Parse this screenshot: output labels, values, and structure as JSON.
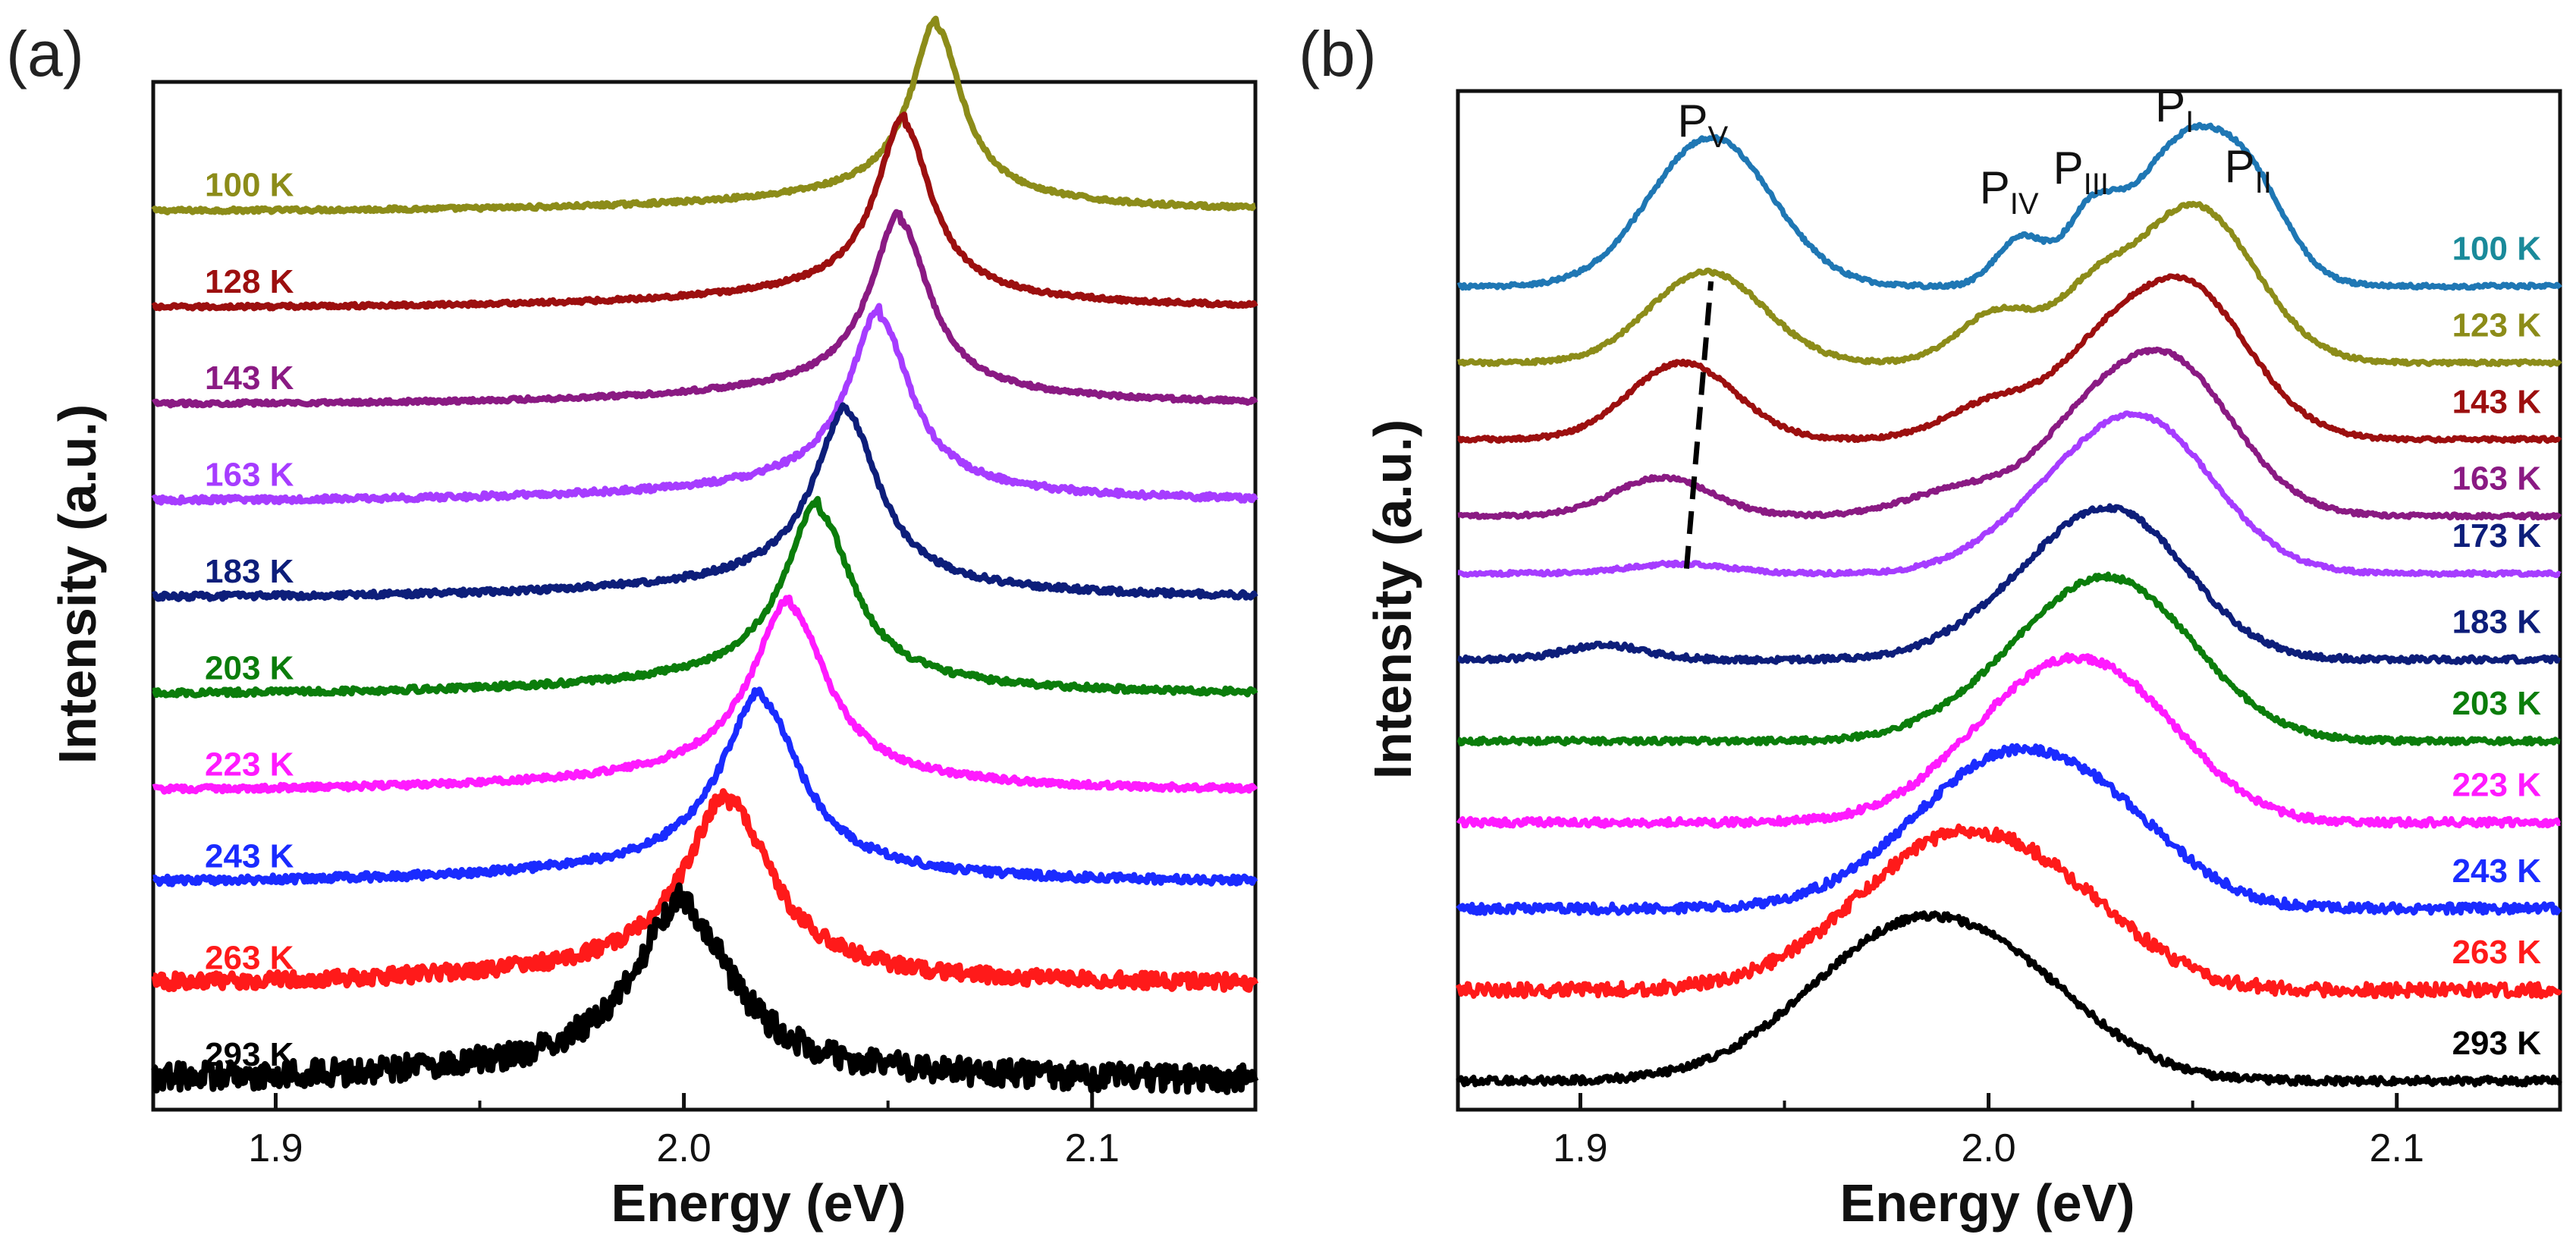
{
  "chart_data": [
    {
      "type": "line",
      "panel_label": "(a)",
      "xlabel": "Energy (eV)",
      "ylabel": "Intensity (a.u.)",
      "xlim": [
        1.87,
        2.14
      ],
      "xticks": [
        "1.9",
        "2.0",
        "2.1"
      ],
      "x_tick_values": [
        1.9,
        2.0,
        2.1
      ],
      "grid": false,
      "series": [
        {
          "name": "100 K",
          "color": "#8c8c19",
          "baseline": 0.93,
          "peak": 2.062,
          "amp": 0.2,
          "width": 0.0075,
          "tail": 0.045,
          "noise": 0.002
        },
        {
          "name": "128 K",
          "color": "#9c0f0f",
          "baseline": 0.83,
          "peak": 2.054,
          "amp": 0.2,
          "width": 0.008,
          "tail": 0.045,
          "noise": 0.002
        },
        {
          "name": "143 K",
          "color": "#8a1a83",
          "baseline": 0.73,
          "peak": 2.053,
          "amp": 0.2,
          "width": 0.0085,
          "tail": 0.045,
          "noise": 0.002
        },
        {
          "name": "163 K",
          "color": "#a63cff",
          "baseline": 0.63,
          "peak": 2.048,
          "amp": 0.2,
          "width": 0.009,
          "tail": 0.045,
          "noise": 0.003
        },
        {
          "name": "183 K",
          "color": "#0d1e7a",
          "baseline": 0.53,
          "peak": 2.04,
          "amp": 0.2,
          "width": 0.0095,
          "tail": 0.045,
          "noise": 0.003
        },
        {
          "name": "203 K",
          "color": "#0b7d0b",
          "baseline": 0.43,
          "peak": 2.033,
          "amp": 0.2,
          "width": 0.01,
          "tail": 0.045,
          "noise": 0.003
        },
        {
          "name": "223 K",
          "color": "#ff1aff",
          "baseline": 0.33,
          "peak": 2.026,
          "amp": 0.2,
          "width": 0.011,
          "tail": 0.045,
          "noise": 0.003
        },
        {
          "name": "243 K",
          "color": "#1a2bff",
          "baseline": 0.235,
          "peak": 2.019,
          "amp": 0.2,
          "width": 0.0115,
          "tail": 0.045,
          "noise": 0.004
        },
        {
          "name": "263 K",
          "color": "#ff1a1a",
          "baseline": 0.13,
          "peak": 2.011,
          "amp": 0.2,
          "width": 0.0125,
          "tail": 0.045,
          "noise": 0.008
        },
        {
          "name": "293 K",
          "color": "#000000",
          "baseline": 0.03,
          "peak": 2.0,
          "amp": 0.19,
          "width": 0.014,
          "tail": 0.045,
          "noise": 0.014
        }
      ]
    },
    {
      "type": "line",
      "panel_label": "(b)",
      "xlabel": "Energy (eV)",
      "ylabel": "Intensity (a.u.)",
      "xlim": [
        1.87,
        2.14
      ],
      "xticks": [
        "1.9",
        "2.0",
        "2.1"
      ],
      "x_tick_values": [
        1.9,
        2.0,
        2.1
      ],
      "grid": false,
      "peak_labels": [
        {
          "text": "P",
          "sub": "V",
          "x": 1.929
        },
        {
          "text": "P",
          "sub": "IV",
          "x": 2.003
        },
        {
          "text": "P",
          "sub": "III",
          "x": 2.021
        },
        {
          "text": "P",
          "sub": "I",
          "x": 2.046
        },
        {
          "text": "P",
          "sub": "II",
          "x": 2.063
        }
      ],
      "dashed_line": {
        "x": [
          1.926,
          1.932
        ],
        "y": [
          0.565,
          0.865
        ]
      },
      "series": [
        {
          "name": "100 K",
          "color": "#1f77b4",
          "label_color": "#1a8a9a",
          "baseline": 0.86,
          "noise": 0.002,
          "peaks": [
            {
              "x": 2.05,
              "amp": 0.16,
              "w": 0.014
            },
            {
              "x": 1.932,
              "amp": 0.155,
              "w": 0.015
            },
            {
              "x": 2.008,
              "amp": 0.05,
              "w": 0.006
            },
            {
              "x": 2.025,
              "amp": 0.06,
              "w": 0.006
            },
            {
              "x": 2.066,
              "amp": 0.04,
              "w": 0.008
            }
          ]
        },
        {
          "name": "123 K",
          "color": "#8c8c19",
          "label_color": "#8c8c19",
          "baseline": 0.78,
          "noise": 0.002,
          "peaks": [
            {
              "x": 2.05,
              "amp": 0.165,
              "w": 0.015
            },
            {
              "x": 1.931,
              "amp": 0.095,
              "w": 0.014
            },
            {
              "x": 2.003,
              "amp": 0.055,
              "w": 0.01
            },
            {
              "x": 2.025,
              "amp": 0.05,
              "w": 0.008
            }
          ]
        },
        {
          "name": "143 K",
          "color": "#9c0f0f",
          "label_color": "#9c0f0f",
          "baseline": 0.7,
          "noise": 0.002,
          "peaks": [
            {
              "x": 2.047,
              "amp": 0.165,
              "w": 0.016
            },
            {
              "x": 1.925,
              "amp": 0.08,
              "w": 0.013
            },
            {
              "x": 2.002,
              "amp": 0.04,
              "w": 0.012
            },
            {
              "x": 2.025,
              "amp": 0.04,
              "w": 0.01
            }
          ]
        },
        {
          "name": "163 K",
          "color": "#8a1a83",
          "label_color": "#8a1a83",
          "baseline": 0.62,
          "noise": 0.002,
          "peaks": [
            {
              "x": 2.042,
              "amp": 0.17,
              "w": 0.017
            },
            {
              "x": 1.92,
              "amp": 0.04,
              "w": 0.012
            },
            {
              "x": 1.995,
              "amp": 0.03,
              "w": 0.014
            },
            {
              "x": 2.02,
              "amp": 0.03,
              "w": 0.01
            }
          ]
        },
        {
          "name": "173 K",
          "color": "#a63cff",
          "label_color": "#0d1e7a",
          "baseline": 0.56,
          "noise": 0.002,
          "peaks": [
            {
              "x": 2.037,
              "amp": 0.16,
              "w": 0.018
            },
            {
              "x": 1.924,
              "amp": 0.01,
              "w": 0.012
            },
            {
              "x": 2.01,
              "amp": 0.03,
              "w": 0.015
            }
          ]
        },
        {
          "name": "183 K",
          "color": "#0d1e7a",
          "label_color": "#0d1e7a",
          "baseline": 0.47,
          "noise": 0.003,
          "peaks": [
            {
              "x": 2.031,
              "amp": 0.15,
              "w": 0.018
            },
            {
              "x": 1.906,
              "amp": 0.015,
              "w": 0.01
            },
            {
              "x": 2.005,
              "amp": 0.03,
              "w": 0.016
            }
          ]
        },
        {
          "name": "203 K",
          "color": "#0b7d0b",
          "label_color": "#0b7d0b",
          "baseline": 0.385,
          "noise": 0.003,
          "peaks": [
            {
              "x": 2.031,
              "amp": 0.16,
              "w": 0.02
            },
            {
              "x": 2.005,
              "amp": 0.03,
              "w": 0.018
            }
          ]
        },
        {
          "name": "223 K",
          "color": "#ff1aff",
          "label_color": "#ff1aff",
          "baseline": 0.3,
          "noise": 0.004,
          "peaks": [
            {
              "x": 2.018,
              "amp": 0.16,
              "w": 0.022
            },
            {
              "x": 2.04,
              "amp": 0.03,
              "w": 0.015
            }
          ]
        },
        {
          "name": "243 K",
          "color": "#1a2bff",
          "label_color": "#1a2bff",
          "baseline": 0.21,
          "noise": 0.005,
          "peaks": [
            {
              "x": 2.006,
              "amp": 0.16,
              "w": 0.024
            },
            {
              "x": 2.035,
              "amp": 0.03,
              "w": 0.016
            }
          ]
        },
        {
          "name": "263 K",
          "color": "#ff1a1a",
          "label_color": "#ff1a1a",
          "baseline": 0.125,
          "noise": 0.007,
          "peaks": [
            {
              "x": 1.993,
              "amp": 0.16,
              "w": 0.025
            },
            {
              "x": 2.025,
              "amp": 0.03,
              "w": 0.017
            }
          ]
        },
        {
          "name": "293 K",
          "color": "#000000",
          "label_color": "#000000",
          "baseline": 0.03,
          "noise": 0.004,
          "peaks": [
            {
              "x": 1.983,
              "amp": 0.165,
              "w": 0.026
            },
            {
              "x": 2.015,
              "amp": 0.03,
              "w": 0.018
            }
          ]
        }
      ]
    }
  ]
}
